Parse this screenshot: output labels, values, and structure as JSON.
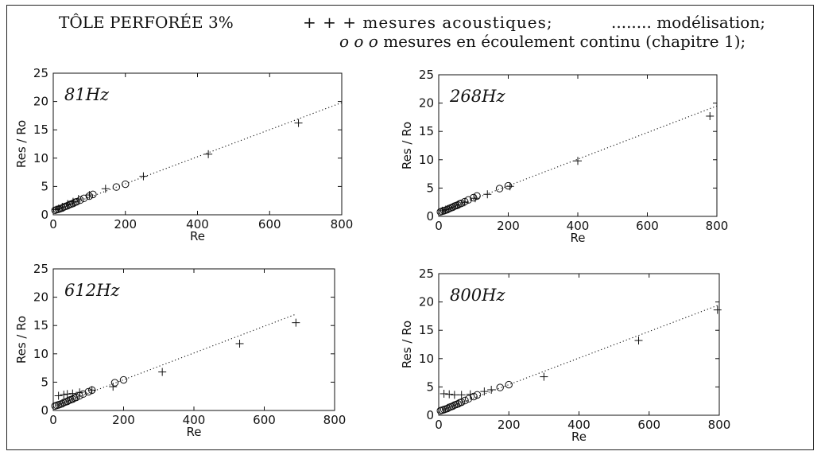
{
  "header": {
    "title": "TÔLE PERFORÉE 3%",
    "plus_marks": "+ + +",
    "acoustic_label": "mesures acoustiques;",
    "model_dots": "........",
    "model_label": "modélisation;",
    "circle_marks": "o o o",
    "flow_label": "mesures en écoulement continu (chapitre 1);"
  },
  "chart_data": [
    {
      "type": "scatter",
      "panel_label": "81Hz",
      "xlabel": "Re",
      "ylabel": "Res / Ro",
      "xlim": [
        0,
        800
      ],
      "ylim": [
        0,
        25
      ],
      "xticks": [
        "0",
        "200",
        "400",
        "600",
        "800"
      ],
      "yticks": [
        "0",
        "5",
        "10",
        "15",
        "20",
        "25"
      ],
      "series": [
        {
          "name": "mesures acoustiques",
          "marker": "+",
          "points": [
            [
              8,
              0.9
            ],
            [
              15,
              1.1
            ],
            [
              25,
              1.4
            ],
            [
              40,
              1.9
            ],
            [
              55,
              2.3
            ],
            [
              70,
              2.8
            ],
            [
              100,
              3.5
            ],
            [
              145,
              4.6
            ],
            [
              250,
              6.8
            ],
            [
              430,
              10.7
            ],
            [
              680,
              16.2
            ]
          ]
        },
        {
          "name": "mesures en écoulement continu",
          "marker": "o",
          "points": [
            [
              5,
              0.8
            ],
            [
              10,
              0.9
            ],
            [
              15,
              1.0
            ],
            [
              20,
              1.1
            ],
            [
              25,
              1.2
            ],
            [
              30,
              1.4
            ],
            [
              35,
              1.5
            ],
            [
              40,
              1.6
            ],
            [
              45,
              1.8
            ],
            [
              50,
              1.9
            ],
            [
              55,
              2.0
            ],
            [
              60,
              2.2
            ],
            [
              65,
              2.3
            ],
            [
              75,
              2.6
            ],
            [
              85,
              2.9
            ],
            [
              100,
              3.3
            ],
            [
              110,
              3.6
            ],
            [
              175,
              4.9
            ],
            [
              200,
              5.4
            ]
          ]
        },
        {
          "name": "modélisation",
          "marker": "dotted",
          "points": [
            [
              0,
              0.7
            ],
            [
              800,
              19.8
            ]
          ]
        }
      ]
    },
    {
      "type": "scatter",
      "panel_label": "268Hz",
      "xlabel": "Re",
      "ylabel": "Res / Ro",
      "xlim": [
        0,
        800
      ],
      "ylim": [
        0,
        25
      ],
      "xticks": [
        "0",
        "200",
        "400",
        "600",
        "800"
      ],
      "yticks": [
        "0",
        "5",
        "10",
        "15",
        "20",
        "25"
      ],
      "series": [
        {
          "name": "mesures acoustiques",
          "marker": "+",
          "points": [
            [
              10,
              1.0
            ],
            [
              20,
              1.2
            ],
            [
              35,
              1.5
            ],
            [
              55,
              2.0
            ],
            [
              75,
              2.5
            ],
            [
              105,
              3.2
            ],
            [
              140,
              3.9
            ],
            [
              205,
              5.3
            ],
            [
              400,
              9.8
            ],
            [
              780,
              17.7
            ]
          ]
        },
        {
          "name": "mesures en écoulement continu",
          "marker": "o",
          "points": [
            [
              5,
              0.8
            ],
            [
              10,
              0.9
            ],
            [
              15,
              1.0
            ],
            [
              20,
              1.1
            ],
            [
              25,
              1.2
            ],
            [
              30,
              1.4
            ],
            [
              35,
              1.5
            ],
            [
              40,
              1.6
            ],
            [
              45,
              1.8
            ],
            [
              50,
              1.9
            ],
            [
              55,
              2.0
            ],
            [
              60,
              2.2
            ],
            [
              65,
              2.3
            ],
            [
              75,
              2.6
            ],
            [
              85,
              2.9
            ],
            [
              100,
              3.3
            ],
            [
              110,
              3.6
            ],
            [
              175,
              4.9
            ],
            [
              200,
              5.4
            ]
          ]
        },
        {
          "name": "modélisation",
          "marker": "dotted",
          "points": [
            [
              0,
              0.7
            ],
            [
              800,
              19.5
            ]
          ]
        }
      ]
    },
    {
      "type": "scatter",
      "panel_label": "612Hz",
      "xlabel": "Re",
      "ylabel": "Res / Ro",
      "xlim": [
        0,
        800
      ],
      "ylim": [
        0,
        25
      ],
      "xticks": [
        "0",
        "200",
        "400",
        "600",
        "800"
      ],
      "yticks": [
        "0",
        "5",
        "10",
        "15",
        "20",
        "25"
      ],
      "series": [
        {
          "name": "mesures acoustiques",
          "marker": "+",
          "points": [
            [
              15,
              2.6
            ],
            [
              30,
              2.8
            ],
            [
              40,
              2.9
            ],
            [
              55,
              3.0
            ],
            [
              75,
              3.2
            ],
            [
              110,
              3.6
            ],
            [
              170,
              4.2
            ],
            [
              310,
              6.8
            ],
            [
              530,
              11.8
            ],
            [
              690,
              15.5
            ]
          ]
        },
        {
          "name": "mesures en écoulement continu",
          "marker": "o",
          "points": [
            [
              5,
              0.8
            ],
            [
              10,
              0.9
            ],
            [
              15,
              1.0
            ],
            [
              20,
              1.1
            ],
            [
              25,
              1.2
            ],
            [
              30,
              1.4
            ],
            [
              35,
              1.5
            ],
            [
              40,
              1.6
            ],
            [
              45,
              1.8
            ],
            [
              50,
              1.9
            ],
            [
              55,
              2.0
            ],
            [
              60,
              2.2
            ],
            [
              65,
              2.3
            ],
            [
              75,
              2.6
            ],
            [
              85,
              2.9
            ],
            [
              100,
              3.3
            ],
            [
              110,
              3.6
            ],
            [
              175,
              4.9
            ],
            [
              200,
              5.4
            ]
          ]
        },
        {
          "name": "modélisation",
          "marker": "dotted",
          "points": [
            [
              0,
              0.7
            ],
            [
              690,
              17.0
            ]
          ]
        }
      ]
    },
    {
      "type": "scatter",
      "panel_label": "800Hz",
      "xlabel": "Re",
      "ylabel": "Res / Ro",
      "xlim": [
        0,
        800
      ],
      "ylim": [
        0,
        25
      ],
      "xticks": [
        "0",
        "200",
        "400",
        "600",
        "800"
      ],
      "yticks": [
        "0",
        "5",
        "10",
        "15",
        "20",
        "25"
      ],
      "series": [
        {
          "name": "mesures acoustiques",
          "marker": "+",
          "points": [
            [
              15,
              3.8
            ],
            [
              30,
              3.7
            ],
            [
              45,
              3.6
            ],
            [
              65,
              3.6
            ],
            [
              90,
              3.7
            ],
            [
              130,
              4.2
            ],
            [
              150,
              4.5
            ],
            [
              300,
              6.8
            ],
            [
              570,
              13.2
            ],
            [
              795,
              18.6
            ]
          ]
        },
        {
          "name": "mesures en écoulement continu",
          "marker": "o",
          "points": [
            [
              5,
              0.8
            ],
            [
              10,
              0.9
            ],
            [
              15,
              1.0
            ],
            [
              20,
              1.1
            ],
            [
              25,
              1.2
            ],
            [
              30,
              1.4
            ],
            [
              35,
              1.5
            ],
            [
              40,
              1.6
            ],
            [
              45,
              1.8
            ],
            [
              50,
              1.9
            ],
            [
              55,
              2.0
            ],
            [
              60,
              2.2
            ],
            [
              65,
              2.3
            ],
            [
              75,
              2.6
            ],
            [
              85,
              2.9
            ],
            [
              100,
              3.3
            ],
            [
              110,
              3.6
            ],
            [
              175,
              4.9
            ],
            [
              200,
              5.4
            ]
          ]
        },
        {
          "name": "modélisation",
          "marker": "dotted",
          "points": [
            [
              0,
              0.7
            ],
            [
              800,
              19.5
            ]
          ]
        }
      ]
    }
  ]
}
